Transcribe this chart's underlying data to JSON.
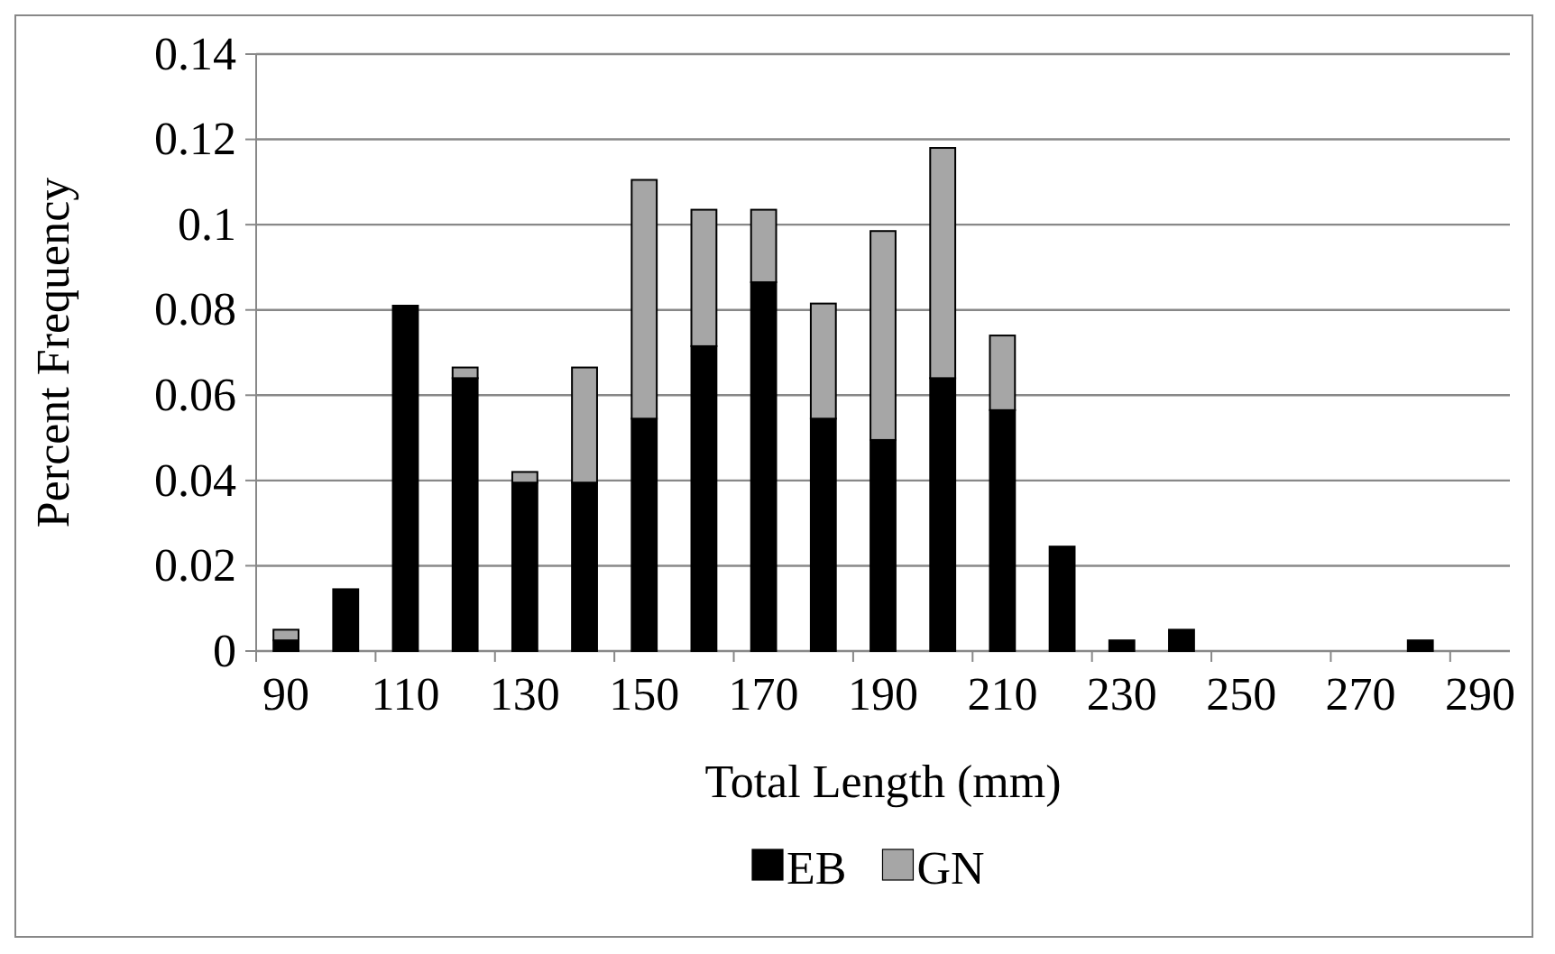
{
  "chart_data": {
    "type": "bar",
    "stacked": true,
    "xlabel": "Total Length (mm)",
    "ylabel": "Percent Frequency",
    "categories": [
      "90",
      null,
      "110",
      null,
      "130",
      null,
      "150",
      null,
      "170",
      null,
      "190",
      null,
      "210",
      null,
      "230",
      null,
      "250",
      null,
      "270",
      null,
      "290"
    ],
    "series": [
      {
        "name": "EB",
        "color": "#000000",
        "values": [
          0.0025,
          0.0145,
          0.081,
          0.064,
          0.0395,
          0.0395,
          0.0545,
          0.0715,
          0.0865,
          0.0545,
          0.0495,
          0.064,
          0.0565,
          0.0245,
          0.0025,
          0.005,
          0,
          0,
          0,
          0.0025,
          0
        ]
      },
      {
        "name": "GN",
        "color": "#a6a6a6",
        "values": [
          0.0025,
          0,
          0,
          0.0025,
          0.0025,
          0.027,
          0.056,
          0.032,
          0.017,
          0.027,
          0.049,
          0.054,
          0.0175,
          0,
          0,
          0,
          0,
          0,
          0,
          0,
          0
        ]
      }
    ],
    "ylim": [
      0,
      0.14
    ],
    "yticks": [
      0,
      0.02,
      0.04,
      0.06,
      0.08,
      0.1,
      0.12,
      0.14
    ],
    "grid": "y",
    "legend": "bottom"
  }
}
